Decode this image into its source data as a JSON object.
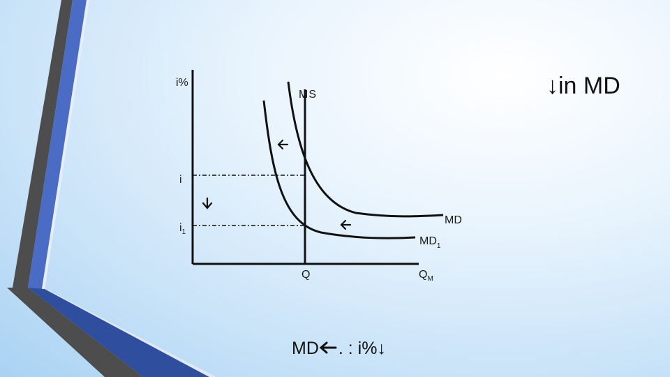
{
  "slide": {
    "title": "↓in MD",
    "caption_main": "MD",
    "caption_rest": ". : i%↓"
  },
  "diagram": {
    "y_axis_label": "i%",
    "money_supply_label": "MS",
    "demand_label": "MD",
    "demand_shifted_label": "MD",
    "demand_shifted_subscript": "1",
    "rate_label": "i",
    "rate_shifted_label": "i",
    "rate_shifted_subscript": "1",
    "quantity_label": "Q",
    "x_axis_label": "Q",
    "x_axis_subscript": "M"
  },
  "icons": {
    "shift_arrow": "arrow-left-icon",
    "rate_arrow": "arrow-down-icon"
  },
  "colors": {
    "stripe_dark": "#4a4a4a",
    "stripe_blue": "#3e5fb8",
    "line": "#111111"
  }
}
